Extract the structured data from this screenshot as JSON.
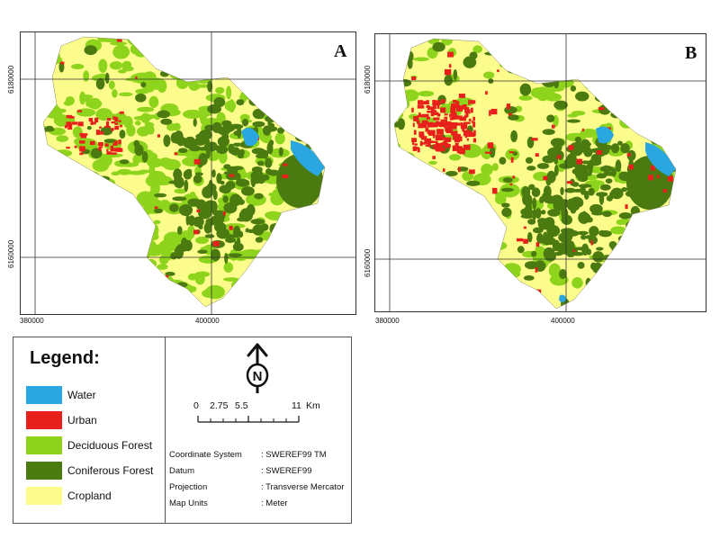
{
  "panels": [
    {
      "label": "A",
      "x_ticks": [
        "380000",
        "400000"
      ],
      "y_ticks": [
        "6180000",
        "6160000"
      ]
    },
    {
      "label": "B",
      "x_ticks": [
        "380000",
        "400000"
      ],
      "y_ticks": [
        "6180000",
        "6160000"
      ]
    }
  ],
  "legend": {
    "title": "Legend:",
    "items": [
      {
        "label": "Water",
        "color": "#2aa7e0"
      },
      {
        "label": "Urban",
        "color": "#e8201c"
      },
      {
        "label": "Deciduous Forest",
        "color": "#8fd41c"
      },
      {
        "label": "Coniferous Forest",
        "color": "#4a7a10"
      },
      {
        "label": "Cropland",
        "color": "#fbfc8c"
      }
    ]
  },
  "north_arrow": {
    "letter": "N"
  },
  "scale_bar": {
    "ticks": [
      "0",
      "2.75",
      "5.5",
      "11"
    ],
    "unit": "Km"
  },
  "metadata": [
    {
      "key": "Coordinate System",
      "value": ": SWEREF99 TM"
    },
    {
      "key": "Datum",
      "value": ": SWEREF99"
    },
    {
      "key": "Projection",
      "value": ": Transverse Mercator"
    },
    {
      "key": "Map Units",
      "value": ": Meter"
    }
  ]
}
